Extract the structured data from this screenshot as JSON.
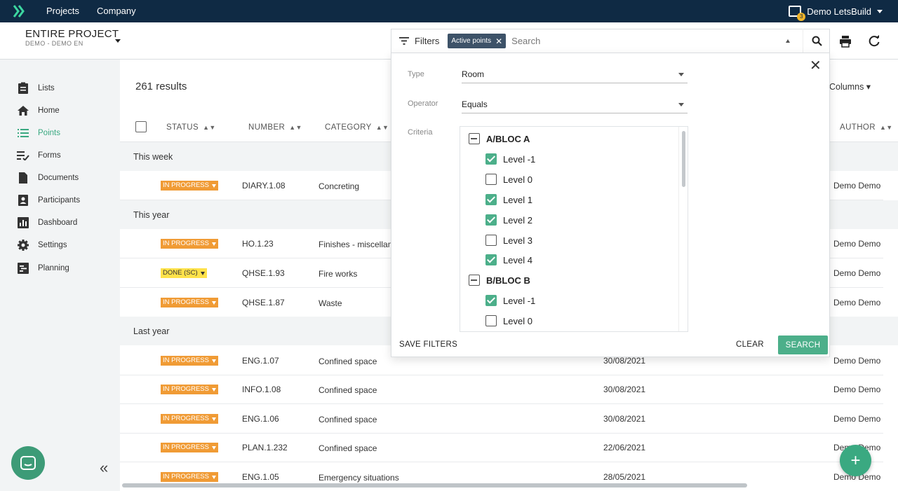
{
  "topbar": {
    "nav": [
      "Projects",
      "Company"
    ],
    "user_name": "Demo LetsBuild",
    "notification_count": "3"
  },
  "header": {
    "project_title": "ENTIRE PROJECT",
    "project_sub": "DEMO - DEMO EN"
  },
  "sidebar": {
    "items": [
      {
        "label": "Lists",
        "icon": "clipboard-icon"
      },
      {
        "label": "Home",
        "icon": "home-icon"
      },
      {
        "label": "Points",
        "icon": "list-icon"
      },
      {
        "label": "Forms",
        "icon": "checklist-icon"
      },
      {
        "label": "Documents",
        "icon": "document-icon"
      },
      {
        "label": "Participants",
        "icon": "contacts-icon"
      },
      {
        "label": "Dashboard",
        "icon": "dashboard-icon"
      },
      {
        "label": "Settings",
        "icon": "gear-icon"
      },
      {
        "label": "Planning",
        "icon": "planning-icon"
      }
    ],
    "active": "Points"
  },
  "main": {
    "results": "261 results",
    "columns_label": "Columns",
    "headers": {
      "status": "STATUS",
      "number": "NUMBER",
      "category": "CATEGORY",
      "author": "AUTHOR"
    },
    "groups": [
      "This week",
      "This year",
      "Last year"
    ],
    "rows": [
      {
        "status": "IN PROGRESS",
        "number": "DIARY.1.08",
        "category": "Concreting",
        "date": "",
        "author": "Demo Demo"
      },
      {
        "status": "IN PROGRESS",
        "number": "HO.1.23",
        "category": "Finishes - miscellan",
        "date": "",
        "author": "Demo Demo"
      },
      {
        "status": "DONE (SC)",
        "number": "QHSE.1.93",
        "category": "Fire works",
        "date": "",
        "author": "Demo Demo"
      },
      {
        "status": "IN PROGRESS",
        "number": "QHSE.1.87",
        "category": "Waste",
        "date": "",
        "author": "Demo Demo"
      },
      {
        "status": "IN PROGRESS",
        "number": "ENG.1.07",
        "category": "Confined space",
        "date": "30/08/2021",
        "author": "Demo Demo"
      },
      {
        "status": "IN PROGRESS",
        "number": "INFO.1.08",
        "category": "Confined space",
        "date": "30/08/2021",
        "author": "Demo Demo"
      },
      {
        "status": "IN PROGRESS",
        "number": "ENG.1.06",
        "category": "Confined space",
        "date": "30/08/2021",
        "author": "Demo Demo"
      },
      {
        "status": "IN PROGRESS",
        "number": "PLAN.1.232",
        "category": "Confined space",
        "date": "22/06/2021",
        "author": "Demo Demo"
      },
      {
        "status": "IN PROGRESS",
        "number": "ENG.1.05",
        "category": "Emergency situations",
        "date": "28/05/2021",
        "author": "Demo Demo"
      }
    ]
  },
  "filter": {
    "label": "Filters",
    "chip": "Active points",
    "search_placeholder": "Search",
    "type_label": "Type",
    "type_value": "Room",
    "operator_label": "Operator",
    "operator_value": "Equals",
    "criteria_label": "Criteria",
    "criteria": [
      {
        "label": "A/BLOC A",
        "group": true,
        "state": "partial"
      },
      {
        "label": "Level -1",
        "group": false,
        "state": "checked"
      },
      {
        "label": "Level 0",
        "group": false,
        "state": "unchecked"
      },
      {
        "label": "Level 1",
        "group": false,
        "state": "checked"
      },
      {
        "label": "Level 2",
        "group": false,
        "state": "checked"
      },
      {
        "label": "Level 3",
        "group": false,
        "state": "unchecked"
      },
      {
        "label": "Level 4",
        "group": false,
        "state": "checked"
      },
      {
        "label": "B/BLOC B",
        "group": true,
        "state": "partial"
      },
      {
        "label": "Level -1",
        "group": false,
        "state": "checked"
      },
      {
        "label": "Level 0",
        "group": false,
        "state": "unchecked"
      }
    ],
    "save_filters": "SAVE FILTERS",
    "clear": "CLEAR",
    "search": "SEARCH"
  },
  "colors": {
    "topbar": "#0f2a44",
    "accent": "#3aa981",
    "in_progress": "#f09b35",
    "done": "#ffe24a"
  }
}
